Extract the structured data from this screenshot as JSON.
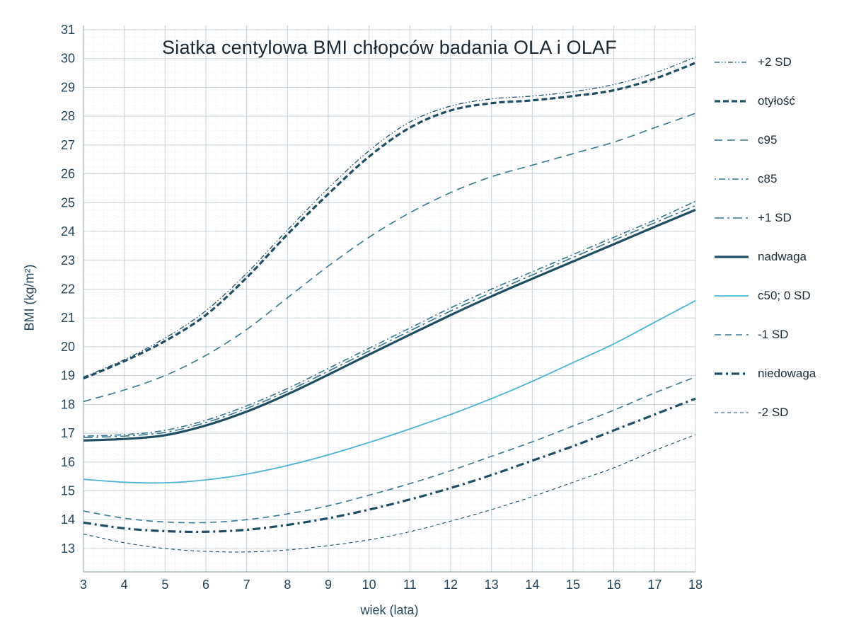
{
  "title": "Siatka centylowa BMI chłopców badania OLA i OLAF",
  "xlabel": "wiek (lata)",
  "ylabel": "BMI (kg/m²)",
  "colors": {
    "dark": "#1d4e63",
    "medium": "#35788f",
    "light": "#49b5d2",
    "grid_major": "#c7d3d9",
    "grid_minor": "#e7eef1",
    "axis": "#9fb0b8",
    "tick_text": "#24455a",
    "title_text": "#1a2630"
  },
  "chart_data": {
    "type": "line",
    "x": [
      3,
      4,
      5,
      6,
      7,
      8,
      9,
      10,
      11,
      12,
      13,
      14,
      15,
      16,
      17,
      18
    ],
    "x_ticks": [
      "3",
      "4",
      "5",
      "6",
      "7",
      "8",
      "9",
      "10",
      "11",
      "12",
      "13",
      "14",
      "15",
      "16",
      "17",
      "18"
    ],
    "y_ticks": [
      "13",
      "14",
      "15",
      "16",
      "17",
      "18",
      "19",
      "20",
      "21",
      "22",
      "23",
      "24",
      "25",
      "26",
      "27",
      "28",
      "29",
      "30",
      "31"
    ],
    "xlim": [
      3,
      18
    ],
    "ylim": [
      12.2,
      31.15
    ],
    "grid": true,
    "legend_position": "right",
    "series": [
      {
        "name": "+2 SD",
        "color_key": "dark",
        "width": 1.3,
        "dash": "7 3 1.5 3 1.5 3",
        "values": [
          18.95,
          19.55,
          20.3,
          21.25,
          22.55,
          24.05,
          25.5,
          26.8,
          27.8,
          28.35,
          28.6,
          28.7,
          28.85,
          29.1,
          29.5,
          30.05
        ]
      },
      {
        "name": "otyłość",
        "color_key": "dark",
        "width": 3.2,
        "dash": "8 4",
        "values": [
          18.9,
          19.5,
          20.2,
          21.1,
          22.4,
          23.9,
          25.3,
          26.6,
          27.6,
          28.2,
          28.45,
          28.55,
          28.7,
          28.9,
          29.3,
          29.85
        ]
      },
      {
        "name": "c95",
        "color_key": "medium",
        "width": 1.6,
        "dash": "11 7",
        "values": [
          18.1,
          18.5,
          19.0,
          19.7,
          20.6,
          21.7,
          22.8,
          23.8,
          24.65,
          25.35,
          25.9,
          26.3,
          26.7,
          27.1,
          27.6,
          28.1
        ]
      },
      {
        "name": "c85",
        "color_key": "medium",
        "width": 1.6,
        "dash": "2 4 9 4",
        "values": [
          16.9,
          16.95,
          17.1,
          17.45,
          17.95,
          18.55,
          19.25,
          19.95,
          20.65,
          21.35,
          22.0,
          22.6,
          23.2,
          23.8,
          24.4,
          25.05
        ]
      },
      {
        "name": "+1 SD",
        "color_key": "medium",
        "width": 1.6,
        "dash": "13 5 3 5",
        "values": [
          16.85,
          16.9,
          17.03,
          17.37,
          17.86,
          18.46,
          19.15,
          19.85,
          20.55,
          21.24,
          21.88,
          22.49,
          23.1,
          23.7,
          24.3,
          24.9
        ]
      },
      {
        "name": "nadwaga",
        "color_key": "dark",
        "width": 3.2,
        "dash": "",
        "values": [
          16.75,
          16.8,
          16.93,
          17.27,
          17.75,
          18.35,
          19.03,
          19.73,
          20.42,
          21.1,
          21.75,
          22.36,
          22.96,
          23.56,
          24.16,
          24.75
        ]
      },
      {
        "name": "c50; 0 SD",
        "color_key": "light",
        "width": 1.8,
        "dash": "",
        "values": [
          15.4,
          15.3,
          15.28,
          15.38,
          15.58,
          15.88,
          16.25,
          16.68,
          17.15,
          17.65,
          18.2,
          18.8,
          19.45,
          20.1,
          20.85,
          21.6
        ]
      },
      {
        "name": "-1 SD",
        "color_key": "medium",
        "width": 1.6,
        "dash": "9 6",
        "values": [
          14.3,
          14.05,
          13.92,
          13.9,
          14.0,
          14.2,
          14.48,
          14.85,
          15.25,
          15.7,
          16.2,
          16.7,
          17.25,
          17.8,
          18.4,
          18.95
        ]
      },
      {
        "name": "niedowaga",
        "color_key": "dark",
        "width": 3.2,
        "dash": "11 5 3 5",
        "values": [
          13.9,
          13.7,
          13.6,
          13.58,
          13.65,
          13.82,
          14.05,
          14.35,
          14.7,
          15.1,
          15.55,
          16.05,
          16.55,
          17.1,
          17.65,
          18.2
        ]
      },
      {
        "name": "-2 SD",
        "color_key": "dark",
        "width": 1.1,
        "dash": "5 4",
        "values": [
          13.5,
          13.2,
          13.0,
          12.9,
          12.88,
          12.95,
          13.1,
          13.3,
          13.58,
          13.95,
          14.35,
          14.8,
          15.3,
          15.8,
          16.4,
          16.95
        ]
      }
    ]
  }
}
